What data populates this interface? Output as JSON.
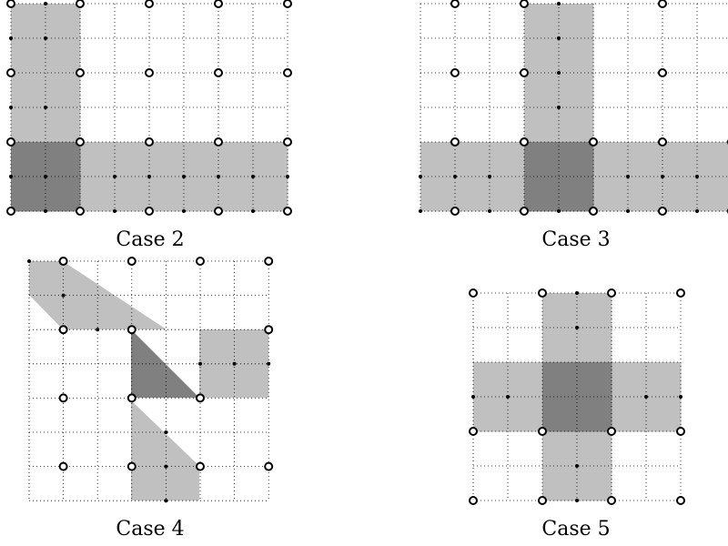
{
  "colors": {
    "light": "#c0c0c0",
    "dark": "#808080",
    "grid": "#000000",
    "background": "#ffffff"
  },
  "panels": [
    {
      "caption": "Case 2",
      "light_cells": [
        [
          0,
          0
        ],
        [
          0,
          1
        ],
        [
          0,
          2
        ],
        [
          0,
          3
        ],
        [
          1,
          0
        ],
        [
          1,
          1
        ],
        [
          1,
          2
        ],
        [
          1,
          3
        ],
        [
          2,
          4
        ],
        [
          3,
          4
        ],
        [
          4,
          4
        ],
        [
          5,
          4
        ],
        [
          6,
          4
        ],
        [
          7,
          4
        ],
        [
          2,
          5
        ],
        [
          3,
          5
        ],
        [
          4,
          5
        ],
        [
          5,
          5
        ],
        [
          6,
          5
        ],
        [
          7,
          5
        ]
      ],
      "dark_cells": [
        [
          0,
          4
        ],
        [
          1,
          4
        ],
        [
          0,
          5
        ],
        [
          1,
          5
        ]
      ],
      "circles": [
        [
          0,
          0
        ],
        [
          2,
          0
        ],
        [
          4,
          0
        ],
        [
          6,
          0
        ],
        [
          8,
          0
        ],
        [
          0,
          2
        ],
        [
          2,
          2
        ],
        [
          4,
          2
        ],
        [
          6,
          2
        ],
        [
          8,
          2
        ],
        [
          0,
          4
        ],
        [
          2,
          4
        ],
        [
          4,
          4
        ],
        [
          6,
          4
        ],
        [
          8,
          4
        ],
        [
          0,
          6
        ],
        [
          2,
          6
        ],
        [
          4,
          6
        ],
        [
          6,
          6
        ],
        [
          8,
          6
        ]
      ],
      "dots": [
        [
          1,
          0
        ],
        [
          0,
          1
        ],
        [
          1,
          1
        ],
        [
          0,
          3
        ],
        [
          1,
          3
        ],
        [
          0,
          5
        ],
        [
          1,
          5
        ],
        [
          3,
          5
        ],
        [
          4,
          5
        ],
        [
          5,
          5
        ],
        [
          6,
          5
        ],
        [
          7,
          5
        ],
        [
          8,
          5
        ],
        [
          1,
          6
        ],
        [
          3,
          6
        ],
        [
          5,
          6
        ],
        [
          7,
          6
        ]
      ]
    },
    {
      "caption": "Case 3",
      "light_cells": [
        [
          3,
          0
        ],
        [
          4,
          0
        ],
        [
          3,
          1
        ],
        [
          4,
          1
        ],
        [
          3,
          2
        ],
        [
          4,
          2
        ],
        [
          3,
          3
        ],
        [
          4,
          3
        ],
        [
          0,
          4
        ],
        [
          1,
          4
        ],
        [
          2,
          4
        ],
        [
          5,
          4
        ],
        [
          6,
          4
        ],
        [
          7,
          4
        ],
        [
          8,
          4
        ],
        [
          0,
          5
        ],
        [
          1,
          5
        ],
        [
          2,
          5
        ],
        [
          5,
          5
        ],
        [
          6,
          5
        ],
        [
          7,
          5
        ],
        [
          8,
          5
        ]
      ],
      "dark_cells": [
        [
          3,
          4
        ],
        [
          4,
          4
        ],
        [
          3,
          5
        ],
        [
          4,
          5
        ]
      ],
      "circles": [
        [
          1,
          0
        ],
        [
          3,
          0
        ],
        [
          7,
          0
        ],
        [
          1,
          2
        ],
        [
          3,
          2
        ],
        [
          7,
          2
        ],
        [
          1,
          4
        ],
        [
          3,
          4
        ],
        [
          5,
          4
        ],
        [
          7,
          4
        ],
        [
          9,
          4
        ],
        [
          1,
          6
        ],
        [
          3,
          6
        ],
        [
          5,
          6
        ],
        [
          7,
          6
        ],
        [
          9,
          6
        ]
      ],
      "dots": [
        [
          4,
          0
        ],
        [
          4,
          1
        ],
        [
          4,
          2
        ],
        [
          4,
          3
        ],
        [
          0,
          5
        ],
        [
          1,
          5
        ],
        [
          2,
          5
        ],
        [
          6,
          5
        ],
        [
          7,
          5
        ],
        [
          8,
          5
        ],
        [
          0,
          6
        ],
        [
          2,
          6
        ],
        [
          4,
          6
        ],
        [
          6,
          6
        ],
        [
          8,
          6
        ]
      ]
    },
    {
      "caption": "Case 4",
      "circles": [
        [
          1,
          0
        ],
        [
          3,
          0
        ],
        [
          5,
          0
        ],
        [
          7,
          0
        ],
        [
          1,
          2
        ],
        [
          3,
          2
        ],
        [
          7,
          2
        ],
        [
          1,
          4
        ],
        [
          3,
          4
        ],
        [
          5,
          4
        ],
        [
          1,
          6
        ],
        [
          3,
          6
        ],
        [
          5,
          6
        ],
        [
          7,
          6
        ]
      ],
      "dots": [
        [
          0,
          0
        ],
        [
          1,
          1
        ],
        [
          2,
          2
        ],
        [
          4,
          5
        ],
        [
          5,
          3
        ],
        [
          6,
          3
        ],
        [
          7,
          3
        ],
        [
          4,
          6
        ],
        [
          4,
          7
        ]
      ]
    },
    {
      "caption": "Case 5",
      "light_cells": [
        [
          2,
          0
        ],
        [
          3,
          0
        ],
        [
          2,
          1
        ],
        [
          3,
          1
        ],
        [
          0,
          2
        ],
        [
          1,
          2
        ],
        [
          4,
          2
        ],
        [
          5,
          2
        ],
        [
          0,
          3
        ],
        [
          1,
          3
        ],
        [
          4,
          3
        ],
        [
          5,
          3
        ],
        [
          2,
          4
        ],
        [
          3,
          4
        ],
        [
          2,
          5
        ],
        [
          3,
          5
        ]
      ],
      "dark_cells": [
        [
          2,
          2
        ],
        [
          3,
          2
        ],
        [
          2,
          3
        ],
        [
          3,
          3
        ]
      ],
      "circles": [
        [
          0,
          0
        ],
        [
          2,
          0
        ],
        [
          4,
          0
        ],
        [
          6,
          0
        ],
        [
          0,
          4
        ],
        [
          2,
          4
        ],
        [
          4,
          4
        ],
        [
          6,
          4
        ],
        [
          0,
          6
        ],
        [
          2,
          6
        ],
        [
          4,
          6
        ],
        [
          6,
          6
        ]
      ],
      "dots": [
        [
          3,
          0
        ],
        [
          3,
          1
        ],
        [
          0,
          3
        ],
        [
          1,
          3
        ],
        [
          5,
          3
        ],
        [
          6,
          3
        ],
        [
          3,
          5
        ],
        [
          3,
          6
        ]
      ]
    }
  ]
}
